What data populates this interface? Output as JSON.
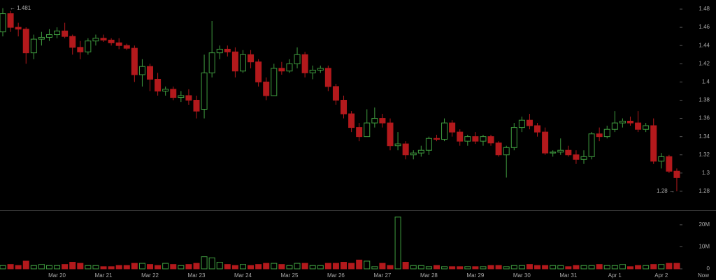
{
  "chart_data": {
    "type": "candlestick",
    "categories": [
      null,
      null,
      null,
      null,
      null,
      null,
      null,
      "Mar 20",
      null,
      null,
      null,
      null,
      null,
      "Mar 21",
      null,
      null,
      null,
      null,
      null,
      "Mar 22",
      null,
      null,
      null,
      null,
      null,
      "Mar 23",
      null,
      null,
      null,
      null,
      null,
      "Mar 24",
      null,
      null,
      null,
      null,
      null,
      "Mar 25",
      null,
      null,
      null,
      null,
      null,
      "Mar 26",
      null,
      null,
      null,
      null,
      null,
      "Mar 27",
      null,
      null,
      null,
      null,
      null,
      "Mar 28",
      null,
      null,
      null,
      null,
      null,
      "Mar 29",
      null,
      null,
      null,
      null,
      null,
      "Mar 30",
      null,
      null,
      null,
      null,
      null,
      "Mar 31",
      null,
      null,
      null,
      null,
      null,
      "Apr 1",
      null,
      null,
      null,
      null,
      null,
      "Apr 2",
      null,
      null
    ],
    "now_label": "Now",
    "open": [
      1.455,
      1.475,
      1.46,
      1.458,
      1.432,
      1.447,
      1.449,
      1.452,
      1.456,
      1.45,
      1.438,
      1.433,
      1.445,
      1.448,
      1.446,
      1.443,
      1.44,
      1.437,
      1.408,
      1.417,
      1.403,
      1.39,
      1.392,
      1.383,
      1.385,
      1.38,
      1.37,
      1.41,
      1.432,
      1.436,
      1.433,
      1.412,
      1.43,
      1.422,
      1.4,
      1.385,
      1.415,
      1.412,
      1.42,
      1.43,
      1.41,
      1.413,
      1.415,
      1.395,
      1.38,
      1.365,
      1.35,
      1.34,
      1.355,
      1.36,
      1.355,
      1.33,
      1.332,
      1.32,
      1.322,
      1.325,
      1.338,
      1.337,
      1.355,
      1.345,
      1.335,
      1.34,
      1.335,
      1.34,
      1.333,
      1.32,
      1.328,
      1.35,
      1.358,
      1.352,
      1.345,
      1.322,
      1.323,
      1.325,
      1.32,
      1.315,
      1.318,
      1.343,
      1.34,
      1.348,
      1.355,
      1.357,
      1.355,
      1.348,
      1.352,
      1.313,
      1.318,
      1.302
    ],
    "high": [
      1.481,
      1.478,
      1.465,
      1.46,
      1.452,
      1.455,
      1.458,
      1.46,
      1.465,
      1.452,
      1.445,
      1.448,
      1.452,
      1.452,
      1.448,
      1.448,
      1.442,
      1.44,
      1.425,
      1.42,
      1.41,
      1.395,
      1.395,
      1.39,
      1.392,
      1.385,
      1.43,
      1.467,
      1.44,
      1.44,
      1.438,
      1.435,
      1.435,
      1.425,
      1.405,
      1.42,
      1.422,
      1.425,
      1.438,
      1.433,
      1.418,
      1.418,
      1.418,
      1.398,
      1.385,
      1.368,
      1.355,
      1.37,
      1.372,
      1.365,
      1.36,
      1.345,
      1.335,
      1.325,
      1.33,
      1.34,
      1.342,
      1.36,
      1.358,
      1.348,
      1.342,
      1.345,
      1.342,
      1.342,
      1.335,
      1.33,
      1.355,
      1.362,
      1.365,
      1.355,
      1.35,
      1.325,
      1.338,
      1.33,
      1.325,
      1.325,
      1.345,
      1.35,
      1.352,
      1.368,
      1.36,
      1.362,
      1.368,
      1.355,
      1.36,
      1.322,
      1.32,
      1.305
    ],
    "low": [
      1.45,
      1.455,
      1.45,
      1.42,
      1.425,
      1.44,
      1.445,
      1.448,
      1.448,
      1.43,
      1.425,
      1.43,
      1.44,
      1.444,
      1.44,
      1.436,
      1.435,
      1.4,
      1.395,
      1.39,
      1.385,
      1.385,
      1.38,
      1.378,
      1.375,
      1.36,
      1.36,
      1.405,
      1.425,
      1.428,
      1.405,
      1.41,
      1.415,
      1.395,
      1.38,
      1.385,
      1.408,
      1.41,
      1.415,
      1.405,
      1.403,
      1.41,
      1.39,
      1.375,
      1.36,
      1.345,
      1.335,
      1.34,
      1.35,
      1.35,
      1.325,
      1.325,
      1.315,
      1.315,
      1.318,
      1.32,
      1.335,
      1.335,
      1.34,
      1.33,
      1.33,
      1.332,
      1.33,
      1.33,
      1.318,
      1.295,
      1.325,
      1.345,
      1.348,
      1.34,
      1.32,
      1.318,
      1.32,
      1.318,
      1.31,
      1.31,
      1.315,
      1.335,
      1.338,
      1.345,
      1.35,
      1.352,
      1.345,
      1.345,
      1.31,
      1.305,
      1.3,
      1.28
    ],
    "close": [
      1.475,
      1.46,
      1.458,
      1.432,
      1.447,
      1.449,
      1.452,
      1.456,
      1.45,
      1.438,
      1.433,
      1.445,
      1.448,
      1.446,
      1.443,
      1.44,
      1.437,
      1.408,
      1.417,
      1.403,
      1.39,
      1.392,
      1.383,
      1.385,
      1.38,
      1.368,
      1.41,
      1.432,
      1.436,
      1.433,
      1.412,
      1.43,
      1.422,
      1.4,
      1.385,
      1.415,
      1.412,
      1.42,
      1.43,
      1.41,
      1.413,
      1.415,
      1.395,
      1.38,
      1.365,
      1.35,
      1.34,
      1.355,
      1.36,
      1.355,
      1.33,
      1.332,
      1.32,
      1.322,
      1.325,
      1.338,
      1.337,
      1.355,
      1.345,
      1.335,
      1.34,
      1.335,
      1.34,
      1.333,
      1.32,
      1.328,
      1.35,
      1.358,
      1.352,
      1.345,
      1.322,
      1.323,
      1.325,
      1.32,
      1.315,
      1.318,
      1.343,
      1.34,
      1.348,
      1.355,
      1.357,
      1.355,
      1.348,
      1.352,
      1.313,
      1.318,
      1.302,
      1.295
    ],
    "volume": [
      1500000,
      2000000,
      1500000,
      3500000,
      1500000,
      2000000,
      1500000,
      1500000,
      2000000,
      3000000,
      2500000,
      1500000,
      1500000,
      1000000,
      1000000,
      1500000,
      1500000,
      2500000,
      2500000,
      2000000,
      1500000,
      2500000,
      2000000,
      1500000,
      2000000,
      2500000,
      5500000,
      5000000,
      3000000,
      2000000,
      1500000,
      2000000,
      1500000,
      2000000,
      2500000,
      2500000,
      2000000,
      1500000,
      2500000,
      2500000,
      1500000,
      1500000,
      2500000,
      2500000,
      3000000,
      2500000,
      4000000,
      3500000,
      1000000,
      2500000,
      1500000,
      23500000,
      3000000,
      1500000,
      1500000,
      1000000,
      1500000,
      1000000,
      1000000,
      1000000,
      1000000,
      1000000,
      1000000,
      1500000,
      1500000,
      1000000,
      1500000,
      1500000,
      2000000,
      1500000,
      1500000,
      1500000,
      1500000,
      1000000,
      1500000,
      1500000,
      1500000,
      2000000,
      1500000,
      1500000,
      2000000,
      1000000,
      1500000,
      1500000,
      2000000,
      2000000,
      2500000,
      2500000
    ],
    "up_color": "#3f9c3f",
    "down_color": "#b3191c",
    "ylim": [
      1.26,
      1.49
    ],
    "yticks": [
      1.28,
      1.3,
      1.32,
      1.34,
      1.36,
      1.38,
      1.4,
      1.42,
      1.44,
      1.46,
      1.48
    ],
    "volume_ylim": [
      0,
      26000000
    ],
    "volume_yticks": [
      0,
      {
        "value": 10000000,
        "label": "10M"
      },
      {
        "value": 20000000,
        "label": "20M"
      }
    ],
    "annotations": {
      "high": "← 1.481",
      "low": "1.28 →"
    }
  }
}
